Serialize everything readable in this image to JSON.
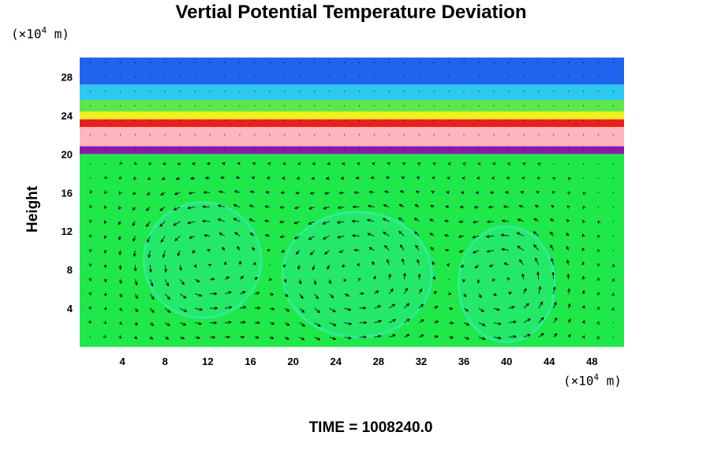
{
  "chart_data": {
    "type": "heatmap",
    "title": "Vertial Potential Temperature Deviation",
    "ylabel": "Height",
    "y_unit": {
      "prefix": "(×10",
      "exp": "4",
      "suffix": " m)"
    },
    "x_unit": {
      "prefix": "(×10",
      "exp": "4",
      "suffix": " m)"
    },
    "footer": "TIME = 1008240.0",
    "xlim": [
      0,
      51
    ],
    "ylim": [
      0,
      30
    ],
    "xticks": [
      4,
      8,
      12,
      16,
      20,
      24,
      28,
      32,
      36,
      40,
      44,
      48
    ],
    "yticks": [
      4,
      8,
      12,
      16,
      20,
      24,
      28
    ],
    "grid": false,
    "overlay": "velocity-vectors",
    "bands": [
      {
        "y0": 0,
        "y1": 20,
        "color": "#1ee84a"
      },
      {
        "y0": 20,
        "y1": 20.8,
        "color": "#8a1aa8"
      },
      {
        "y0": 20.8,
        "y1": 22.8,
        "color": "#ffb6c1"
      },
      {
        "y0": 22.8,
        "y1": 23.6,
        "color": "#e8201e"
      },
      {
        "y0": 23.6,
        "y1": 24.4,
        "color": "#f0f020"
      },
      {
        "y0": 24.4,
        "y1": 25.6,
        "color": "#5ce84c"
      },
      {
        "y0": 25.6,
        "y1": 27.2,
        "color": "#2ec8f0"
      },
      {
        "y0": 27.2,
        "y1": 30,
        "color": "#1e64ee"
      }
    ],
    "cells": [
      {
        "name": "cell-1",
        "cx": 11.5,
        "cy": 9,
        "rx": 5.5,
        "ry": 6
      },
      {
        "name": "cell-2",
        "cx": 26,
        "cy": 7.5,
        "rx": 7,
        "ry": 6.5
      },
      {
        "name": "cell-3",
        "cx": 40,
        "cy": 6.5,
        "rx": 4.5,
        "ry": 6
      }
    ]
  }
}
